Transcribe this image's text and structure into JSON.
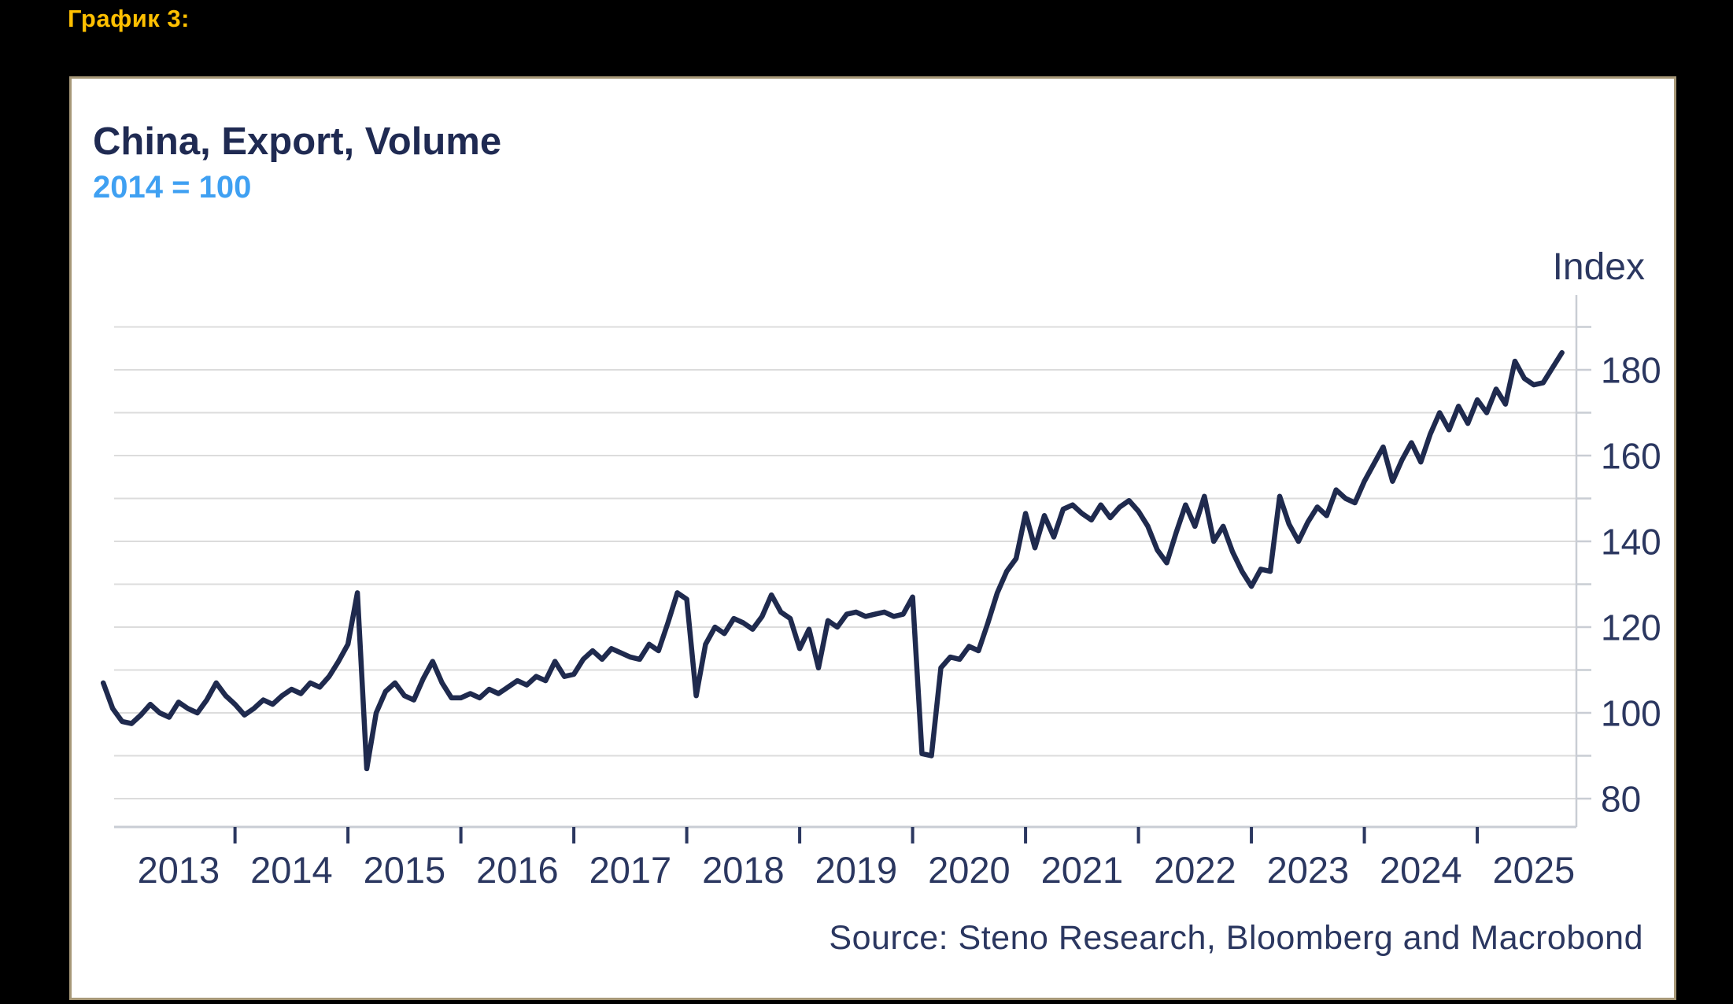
{
  "figure_label": "График 3:",
  "panel": {
    "title": "China, Export, Volume",
    "subtitle": "2014 = 100",
    "axis_unit_label": "Index",
    "source": "Source: Steno Research, Bloomberg and Macrobond"
  },
  "colors": {
    "page_background": "#000000",
    "figure_label": "#ffc000",
    "panel_background": "#ffffff",
    "panel_border": "#a79878",
    "title": "#1f2a52",
    "subtitle": "#3fa0f2",
    "axis_text": "#2b3760",
    "gridline": "#dcdcdc",
    "axis_line": "#c9cdd4",
    "line": "#1f2a4e"
  },
  "chart_data": {
    "type": "line",
    "title": "China, Export, Volume",
    "subtitle": "2014 = 100",
    "ylabel": "Index",
    "source": "Source: Steno Research, Bloomberg and Macrobond",
    "grid": "horizontal",
    "legend": "none",
    "ylim": [
      73,
      193
    ],
    "y_tick_label_values": [
      80,
      100,
      120,
      140,
      160,
      180
    ],
    "y_gridline_values": [
      80,
      90,
      100,
      110,
      120,
      130,
      140,
      150,
      160,
      170,
      180,
      190
    ],
    "x_tick_labels": [
      "2013",
      "2014",
      "2015",
      "2016",
      "2017",
      "2018",
      "2019",
      "2020",
      "2021",
      "2022",
      "2023",
      "2024",
      "2025"
    ],
    "series": [
      {
        "name": "China Export Volume, 2014 = 100",
        "frequency": "monthly",
        "start": "2012-11",
        "values": [
          107,
          101,
          98,
          97.5,
          99.5,
          102,
          100,
          99,
          102.5,
          101,
          100,
          103,
          107,
          104,
          102,
          99.5,
          101,
          103,
          102,
          104,
          105.5,
          104.5,
          107,
          106,
          108.5,
          112,
          116,
          128,
          87,
          100,
          105,
          107,
          104,
          103,
          108,
          112,
          107,
          103.5,
          103.5,
          104.5,
          103.5,
          105.5,
          104.5,
          106,
          107.5,
          106.5,
          108.5,
          107.5,
          112,
          108.5,
          109,
          112.5,
          114.5,
          112.5,
          115,
          114,
          113,
          112.5,
          116,
          114.5,
          121,
          128,
          126.5,
          104,
          116,
          120,
          118.5,
          122,
          121,
          119.5,
          122.5,
          127.5,
          123.5,
          122,
          115,
          119.5,
          110.5,
          121.5,
          120,
          123,
          123.5,
          122.5,
          123,
          123.5,
          122.5,
          123,
          127,
          90.5,
          90,
          110.5,
          113,
          112.5,
          115.5,
          114.5,
          121,
          128,
          133,
          136,
          146.5,
          138.5,
          146,
          141,
          147.5,
          148.5,
          146.5,
          145,
          148.5,
          145.5,
          148,
          149.5,
          147,
          143.5,
          138,
          135,
          142,
          148.5,
          143.5,
          150.5,
          140,
          143.5,
          137.5,
          133,
          129.5,
          133.5,
          133,
          150.5,
          144,
          140,
          144.5,
          148,
          146,
          152,
          150,
          149,
          154,
          158,
          162,
          154,
          159,
          163,
          158.5,
          165,
          170,
          166,
          171.5,
          167.5,
          173,
          170,
          175.5,
          172,
          182,
          178,
          176.5,
          177,
          180.5,
          184
        ]
      }
    ]
  }
}
